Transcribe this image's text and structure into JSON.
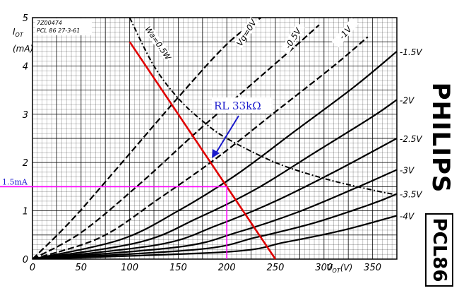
{
  "chart_data": {
    "type": "line",
    "header": [
      "7Z00474",
      "PCL 86  27-3-61"
    ],
    "ylabel": "I",
    "ylabel_sub": "OT",
    "ylabel_unit": "(mA)",
    "xlabel": "V",
    "xlabel_sub": "OT",
    "xlabel_unit": "(V)",
    "xlim": [
      0,
      375
    ],
    "ylim": [
      0,
      5
    ],
    "x_ticks": [
      0,
      50,
      100,
      150,
      200,
      250,
      300,
      350
    ],
    "y_ticks": [
      0,
      1,
      2,
      3,
      4,
      5
    ],
    "grid": true,
    "series": [
      {
        "name": "Vg=0V",
        "dashed": true,
        "points": [
          [
            0,
            0
          ],
          [
            40,
            0.8
          ],
          [
            90,
            1.95
          ],
          [
            150,
            3.35
          ],
          [
            200,
            4.45
          ],
          [
            235,
            5.0
          ]
        ]
      },
      {
        "name": "-0.5V",
        "dashed": true,
        "points": [
          [
            0,
            0
          ],
          [
            50,
            0.55
          ],
          [
            110,
            1.55
          ],
          [
            170,
            2.65
          ],
          [
            230,
            3.7
          ],
          [
            270,
            4.4
          ],
          [
            295,
            4.85
          ]
        ]
      },
      {
        "name": "-1V",
        "dashed": true,
        "points": [
          [
            0,
            0
          ],
          [
            70,
            0.45
          ],
          [
            130,
            1.25
          ],
          [
            190,
            2.1
          ],
          [
            250,
            3.05
          ],
          [
            310,
            4.0
          ],
          [
            345,
            4.6
          ]
        ]
      },
      {
        "name": "-1.5V",
        "dashed": false,
        "points": [
          [
            0,
            0
          ],
          [
            90,
            0.4
          ],
          [
            150,
            1.0
          ],
          [
            210,
            1.75
          ],
          [
            270,
            2.65
          ],
          [
            330,
            3.55
          ],
          [
            375,
            4.3
          ]
        ]
      },
      {
        "name": "-2V",
        "dashed": false,
        "points": [
          [
            0,
            0
          ],
          [
            110,
            0.35
          ],
          [
            170,
            0.85
          ],
          [
            230,
            1.45
          ],
          [
            290,
            2.2
          ],
          [
            350,
            2.95
          ],
          [
            375,
            3.3
          ]
        ]
      },
      {
        "name": "-2.5V",
        "dashed": false,
        "points": [
          [
            0,
            0
          ],
          [
            130,
            0.3
          ],
          [
            190,
            0.7
          ],
          [
            250,
            1.2
          ],
          [
            310,
            1.8
          ],
          [
            375,
            2.5
          ]
        ]
      },
      {
        "name": "-3V",
        "dashed": false,
        "points": [
          [
            0,
            0
          ],
          [
            150,
            0.25
          ],
          [
            210,
            0.55
          ],
          [
            270,
            0.95
          ],
          [
            330,
            1.45
          ],
          [
            375,
            1.85
          ]
        ]
      },
      {
        "name": "-3.5V",
        "dashed": false,
        "points": [
          [
            0,
            0
          ],
          [
            170,
            0.2
          ],
          [
            230,
            0.45
          ],
          [
            290,
            0.75
          ],
          [
            350,
            1.15
          ],
          [
            375,
            1.35
          ]
        ]
      },
      {
        "name": "-4V",
        "dashed": false,
        "points": [
          [
            0,
            0
          ],
          [
            200,
            0.15
          ],
          [
            260,
            0.35
          ],
          [
            320,
            0.6
          ],
          [
            375,
            0.9
          ]
        ]
      }
    ],
    "power_curve": {
      "name": "Wa=0.5W",
      "points": [
        [
          100,
          5.0
        ],
        [
          125,
          4.0
        ],
        [
          150,
          3.33
        ],
        [
          175,
          2.86
        ],
        [
          200,
          2.5
        ],
        [
          250,
          2.0
        ],
        [
          300,
          1.67
        ],
        [
          350,
          1.43
        ],
        [
          375,
          1.33
        ]
      ]
    },
    "load_line": {
      "label": "RL 33kΩ",
      "color": "#e00000",
      "points": [
        [
          100,
          4.5
        ],
        [
          250,
          0
        ]
      ]
    },
    "operating_point": {
      "x": 200,
      "y": 1.5,
      "label": "1.5mA",
      "color": "#ff00ff"
    },
    "grid_labels": [
      "-1.5V",
      "-2V",
      "-2.5V",
      "-3V",
      "-3.5V",
      "-4V"
    ],
    "top_labels": [
      "Vg=0V",
      "-0.5V",
      "-1V"
    ],
    "power_label": "Wa=0.5W"
  },
  "brand": "PHILIPS",
  "model": "PCL86",
  "colors": {
    "arrow": "#1a1acc",
    "annotation_text": "#1a1acc",
    "load_line": "#e00000",
    "op_point": "#ff00ff",
    "ink": "#000000"
  }
}
